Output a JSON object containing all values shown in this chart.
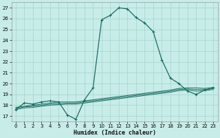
{
  "xlabel": "Humidex (Indice chaleur)",
  "bg_color": "#c8ece8",
  "grid_color": "#a8d8d0",
  "line_color": "#1a6b60",
  "xlim": [
    -0.5,
    23.5
  ],
  "ylim": [
    16.5,
    27.5
  ],
  "xticks": [
    0,
    1,
    2,
    3,
    4,
    5,
    6,
    7,
    8,
    9,
    10,
    11,
    12,
    13,
    14,
    15,
    16,
    17,
    18,
    19,
    20,
    21,
    22,
    23
  ],
  "yticks": [
    17,
    18,
    19,
    20,
    21,
    22,
    23,
    24,
    25,
    26,
    27
  ],
  "x": [
    0,
    1,
    2,
    3,
    4,
    5,
    6,
    7,
    8,
    9,
    10,
    11,
    12,
    13,
    14,
    15,
    16,
    17,
    18,
    19,
    20,
    21,
    22,
    23
  ],
  "main_y": [
    17.6,
    18.2,
    18.1,
    18.3,
    18.4,
    18.3,
    17.1,
    16.7,
    18.5,
    19.6,
    25.9,
    26.3,
    27.0,
    26.9,
    26.1,
    25.6,
    24.8,
    22.2,
    20.5,
    20.0,
    19.3,
    19.0,
    19.4,
    19.6
  ],
  "flat1_y": [
    17.8,
    17.9,
    18.0,
    18.1,
    18.2,
    18.3,
    18.3,
    18.3,
    18.4,
    18.5,
    18.6,
    18.7,
    18.8,
    18.9,
    19.0,
    19.1,
    19.2,
    19.3,
    19.4,
    19.55,
    19.6,
    19.6,
    19.55,
    19.65
  ],
  "flat2_y": [
    17.7,
    17.85,
    17.9,
    18.0,
    18.1,
    18.15,
    18.2,
    18.2,
    18.3,
    18.4,
    18.5,
    18.6,
    18.7,
    18.8,
    18.9,
    19.0,
    19.1,
    19.2,
    19.3,
    19.45,
    19.5,
    19.45,
    19.45,
    19.55
  ],
  "flat3_y": [
    17.6,
    17.75,
    17.8,
    17.9,
    18.0,
    18.05,
    18.1,
    18.1,
    18.2,
    18.3,
    18.4,
    18.5,
    18.6,
    18.7,
    18.8,
    18.9,
    19.0,
    19.1,
    19.2,
    19.35,
    19.4,
    19.3,
    19.35,
    19.45
  ]
}
